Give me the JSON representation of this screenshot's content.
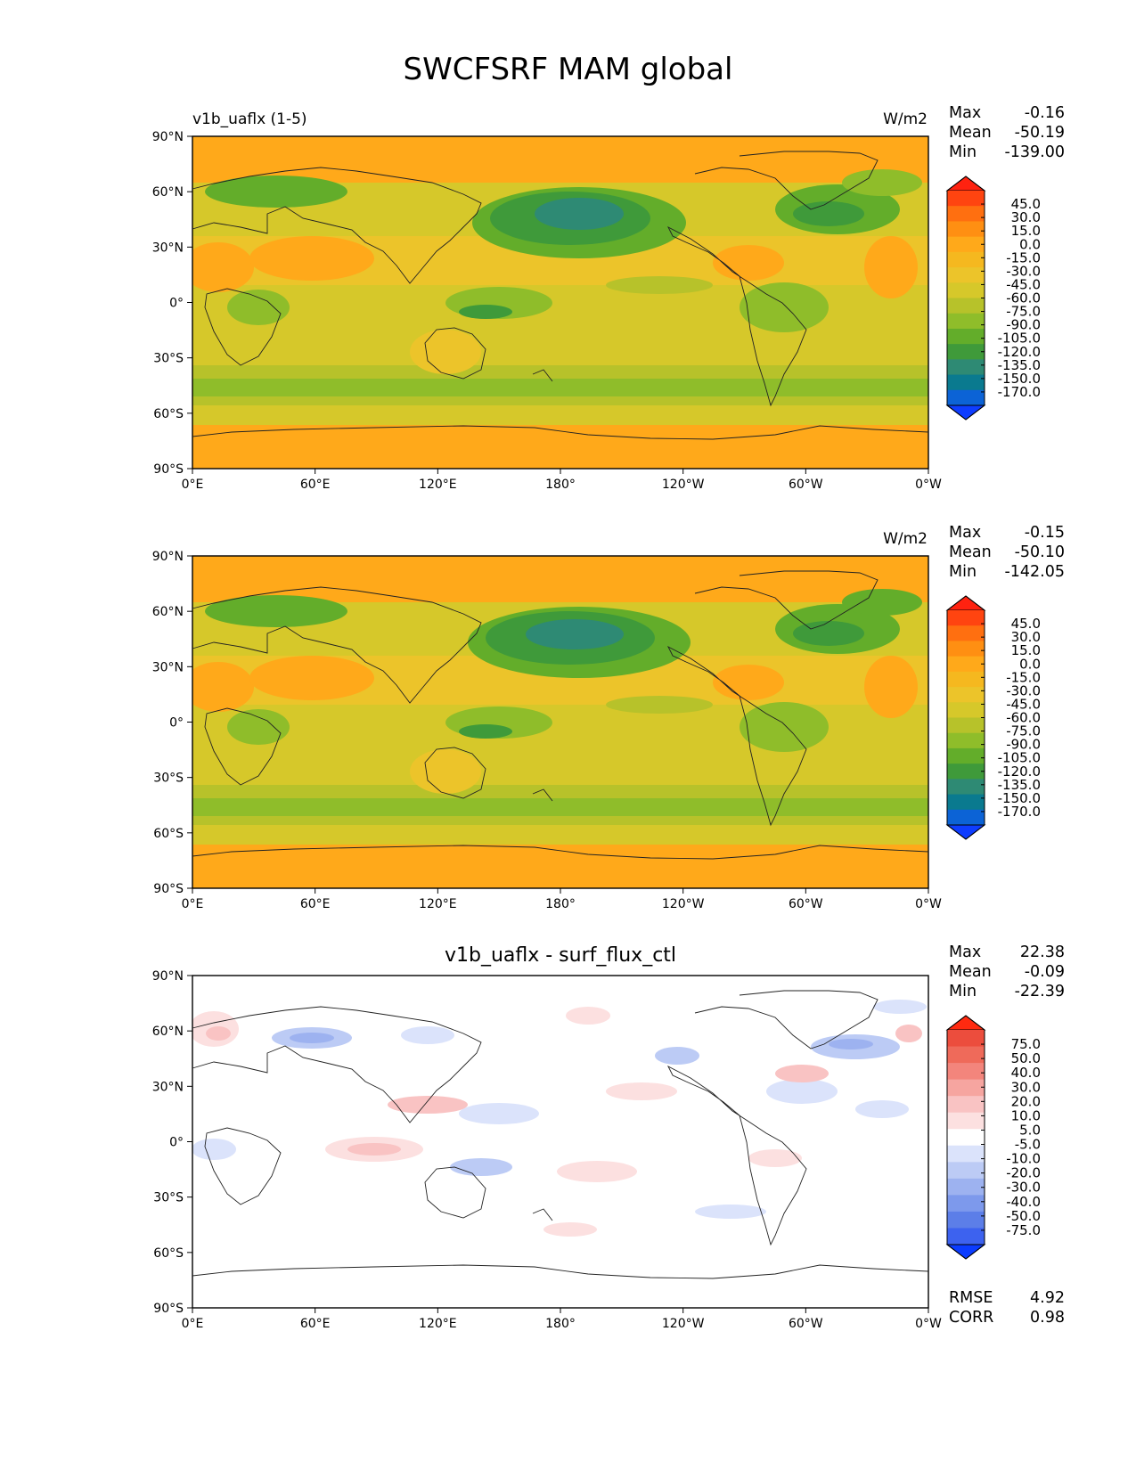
{
  "title": "SWCFSRF MAM global",
  "colors": {
    "base_palette": [
      "#0e3dff",
      "#0c63d6",
      "#0a7a8f",
      "#2e8a74",
      "#3f9a3a",
      "#63ad2a",
      "#8fbd2a",
      "#b7c22a",
      "#d6c82a",
      "#ecc42a",
      "#f5b81f",
      "#ffa91a",
      "#ff8f12",
      "#ff6f10",
      "#ff4410",
      "#ff2210"
    ],
    "diff_palette": [
      "#0b3cff",
      "#3d62ef",
      "#5c7ee8",
      "#7d99ec",
      "#9db2f0",
      "#bccbf5",
      "#dbe3fb",
      "#ffffff",
      "#fce0e0",
      "#f9c3c3",
      "#f6a5a0",
      "#f3857c",
      "#ef6a5a",
      "#ec4d3d",
      "#ff2a10"
    ]
  },
  "chart_data": [
    {
      "type": "heatmap",
      "panel": "test",
      "title_left": "v1b_uaflx (1-5)",
      "units": "W/m2",
      "stats": {
        "max": "-0.16",
        "mean": "-50.19",
        "min": "-139.00"
      },
      "x_ticks": [
        "0°E",
        "60°E",
        "120°E",
        "180°",
        "120°W",
        "60°W",
        "0°W"
      ],
      "y_ticks": [
        "90°N",
        "60°N",
        "30°N",
        "0°",
        "30°S",
        "60°S",
        "90°S"
      ],
      "colorbar_labels": [
        "45.0",
        "30.0",
        "15.0",
        "0.0",
        "-15.0",
        "-30.0",
        "-45.0",
        "-60.0",
        "-75.0",
        "-90.0",
        "-105.0",
        "-120.0",
        "-135.0",
        "-150.0",
        "-170.0"
      ],
      "xlim": [
        0,
        360
      ],
      "ylim": [
        -90,
        90
      ]
    },
    {
      "type": "heatmap",
      "panel": "reference",
      "units": "W/m2",
      "stats": {
        "max": "-0.15",
        "mean": "-50.10",
        "min": "-142.05"
      },
      "x_ticks": [
        "0°E",
        "60°E",
        "120°E",
        "180°",
        "120°W",
        "60°W",
        "0°W"
      ],
      "y_ticks": [
        "90°N",
        "60°N",
        "30°N",
        "0°",
        "30°S",
        "60°S",
        "90°S"
      ],
      "colorbar_labels": [
        "45.0",
        "30.0",
        "15.0",
        "0.0",
        "-15.0",
        "-30.0",
        "-45.0",
        "-60.0",
        "-75.0",
        "-90.0",
        "-105.0",
        "-120.0",
        "-135.0",
        "-150.0",
        "-170.0"
      ],
      "xlim": [
        0,
        360
      ],
      "ylim": [
        -90,
        90
      ]
    },
    {
      "type": "heatmap",
      "panel": "difference",
      "title_center": "v1b_uaflx - surf_flux_ctl",
      "stats": {
        "max": "22.38",
        "mean": "-0.09",
        "min": "-22.39"
      },
      "rmse": "4.92",
      "corr": "0.98",
      "x_ticks": [
        "0°E",
        "60°E",
        "120°E",
        "180°",
        "120°W",
        "60°W",
        "0°W"
      ],
      "y_ticks": [
        "90°N",
        "60°N",
        "30°N",
        "0°",
        "30°S",
        "60°S",
        "90°S"
      ],
      "colorbar_labels": [
        "75.0",
        "50.0",
        "40.0",
        "30.0",
        "20.0",
        "10.0",
        "5.0",
        "-5.0",
        "-10.0",
        "-20.0",
        "-30.0",
        "-40.0",
        "-50.0",
        "-75.0"
      ],
      "xlim": [
        0,
        360
      ],
      "ylim": [
        -90,
        90
      ]
    }
  ],
  "labels": {
    "max": "Max",
    "mean": "Mean",
    "min": "Min",
    "rmse": "RMSE",
    "corr": "CORR"
  }
}
